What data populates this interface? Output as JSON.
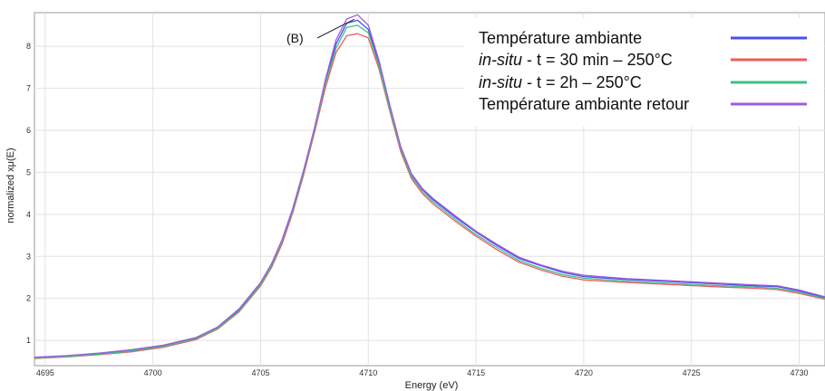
{
  "chart_data": {
    "type": "line",
    "title": "",
    "xlabel": "Energy    (eV)",
    "ylabel": "normalized xμ(E)",
    "xlim": [
      4694.5,
      4731.2
    ],
    "ylim": [
      0.4,
      8.8
    ],
    "x_ticks": [
      4695,
      4700,
      4705,
      4710,
      4715,
      4720,
      4725,
      4730
    ],
    "y_ticks": [
      1,
      2,
      3,
      4,
      5,
      6,
      7,
      8
    ],
    "grid": true,
    "legend_position": "top-right",
    "annotation": {
      "text": "(B)",
      "x": 4709.6,
      "y": 8.6
    },
    "series": [
      {
        "name": "Température ambiante",
        "color": "#4a4cf0",
        "x": [
          4694.5,
          4696,
          4697.5,
          4699,
          4700.5,
          4702,
          4703,
          4704,
          4705,
          4705.5,
          4706,
          4706.5,
          4707,
          4707.5,
          4708,
          4708.5,
          4709,
          4709.5,
          4710,
          4710.5,
          4711,
          4711.5,
          4712,
          4712.5,
          4713,
          4714,
          4715,
          4716,
          4717,
          4718,
          4719,
          4720,
          4722,
          4724,
          4726,
          4728,
          4729,
          4730,
          4731.2
        ],
        "y": [
          0.58,
          0.63,
          0.68,
          0.76,
          0.87,
          1.05,
          1.3,
          1.72,
          2.35,
          2.8,
          3.4,
          4.15,
          5.05,
          6.05,
          7.15,
          8.05,
          8.55,
          8.62,
          8.4,
          7.6,
          6.55,
          5.6,
          4.95,
          4.6,
          4.35,
          3.95,
          3.58,
          3.25,
          2.95,
          2.78,
          2.62,
          2.52,
          2.45,
          2.4,
          2.35,
          2.3,
          2.28,
          2.18,
          2.02
        ]
      },
      {
        "name": "in-situ - t = 30 min – 250°C",
        "color": "#f05a5a",
        "x": [
          4694.5,
          4696,
          4697.5,
          4699,
          4700.5,
          4702,
          4703,
          4704,
          4705,
          4705.5,
          4706,
          4706.5,
          4707,
          4707.5,
          4708,
          4708.5,
          4709,
          4709.5,
          4710,
          4710.5,
          4711,
          4711.5,
          4712,
          4712.5,
          4713,
          4714,
          4715,
          4716,
          4717,
          4718,
          4719,
          4720,
          4722,
          4724,
          4726,
          4728,
          4729,
          4730,
          4731.2
        ],
        "y": [
          0.57,
          0.61,
          0.66,
          0.73,
          0.84,
          1.02,
          1.27,
          1.68,
          2.3,
          2.73,
          3.3,
          4.05,
          4.95,
          5.95,
          7.0,
          7.85,
          8.25,
          8.3,
          8.2,
          7.45,
          6.45,
          5.5,
          4.85,
          4.5,
          4.25,
          3.85,
          3.48,
          3.15,
          2.86,
          2.68,
          2.53,
          2.44,
          2.38,
          2.33,
          2.28,
          2.24,
          2.21,
          2.12,
          1.98
        ]
      },
      {
        "name": "in-situ - t = 2h – 250°C",
        "color": "#3cc08a",
        "x": [
          4694.5,
          4696,
          4697.5,
          4699,
          4700.5,
          4702,
          4703,
          4704,
          4705,
          4705.5,
          4706,
          4706.5,
          4707,
          4707.5,
          4708,
          4708.5,
          4709,
          4709.5,
          4710,
          4710.5,
          4711,
          4711.5,
          4712,
          4712.5,
          4713,
          4714,
          4715,
          4716,
          4717,
          4718,
          4719,
          4720,
          4722,
          4724,
          4726,
          4728,
          4729,
          4730,
          4731.2
        ],
        "y": [
          0.58,
          0.62,
          0.67,
          0.75,
          0.86,
          1.04,
          1.29,
          1.7,
          2.33,
          2.77,
          3.36,
          4.1,
          5.0,
          6.0,
          7.1,
          7.95,
          8.45,
          8.5,
          8.32,
          7.52,
          6.5,
          5.56,
          4.9,
          4.55,
          4.3,
          3.9,
          3.52,
          3.2,
          2.9,
          2.72,
          2.57,
          2.48,
          2.41,
          2.36,
          2.31,
          2.27,
          2.24,
          2.15,
          2.0
        ]
      },
      {
        "name": "Température ambiante retour",
        "color": "#a05ae0",
        "x": [
          4694.5,
          4696,
          4697.5,
          4699,
          4700.5,
          4702,
          4703,
          4704,
          4705,
          4705.5,
          4706,
          4706.5,
          4707,
          4707.5,
          4708,
          4708.5,
          4709,
          4709.5,
          4710,
          4710.5,
          4711,
          4711.5,
          4712,
          4712.5,
          4713,
          4714,
          4715,
          4716,
          4717,
          4718,
          4719,
          4720,
          4722,
          4724,
          4726,
          4728,
          4729,
          4730,
          4731.2
        ],
        "y": [
          0.6,
          0.64,
          0.7,
          0.78,
          0.89,
          1.07,
          1.32,
          1.75,
          2.38,
          2.82,
          3.4,
          4.15,
          5.05,
          6.05,
          7.2,
          8.15,
          8.65,
          8.75,
          8.5,
          7.65,
          6.6,
          5.62,
          4.97,
          4.62,
          4.38,
          3.98,
          3.6,
          3.28,
          2.98,
          2.8,
          2.65,
          2.55,
          2.47,
          2.42,
          2.37,
          2.32,
          2.3,
          2.2,
          2.04
        ]
      }
    ]
  }
}
